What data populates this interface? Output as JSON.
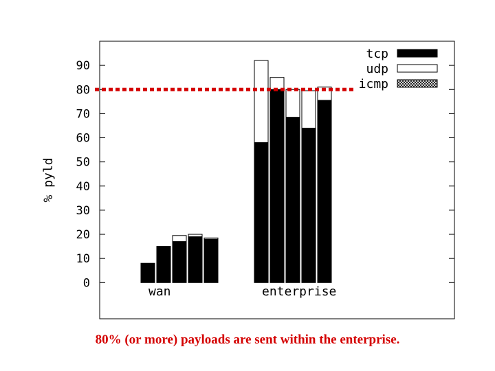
{
  "chart_data": {
    "type": "bar",
    "stacked": true,
    "ylabel": "% pyld",
    "ylim": [
      -15,
      100
    ],
    "yticks": [
      0,
      10,
      20,
      30,
      40,
      50,
      60,
      70,
      80,
      90
    ],
    "groups": [
      {
        "label": "wan",
        "bars": [
          {
            "tcp": 8,
            "udp": 0,
            "icmp": 0
          },
          {
            "tcp": 15,
            "udp": 0,
            "icmp": 0
          },
          {
            "tcp": 17,
            "udp": 2.5,
            "icmp": 0
          },
          {
            "tcp": 19,
            "udp": 1,
            "icmp": 0
          },
          {
            "tcp": 18,
            "udp": 0.5,
            "icmp": 0
          }
        ]
      },
      {
        "label": "enterprise",
        "bars": [
          {
            "tcp": 58,
            "udp": 34,
            "icmp": 0
          },
          {
            "tcp": 80,
            "udp": 5,
            "icmp": 0
          },
          {
            "tcp": 68.5,
            "udp": 11.5,
            "icmp": 0
          },
          {
            "tcp": 64,
            "udp": 15.5,
            "icmp": 0
          },
          {
            "tcp": 75.5,
            "udp": 5.5,
            "icmp": 0
          }
        ]
      }
    ],
    "series": [
      {
        "name": "tcp",
        "color": "#000000",
        "fill": "solid"
      },
      {
        "name": "udp",
        "color": "#ffffff",
        "fill": "empty"
      },
      {
        "name": "icmp",
        "color": "#bbbbbb",
        "fill": "crosshatch"
      }
    ],
    "legend": "top-right",
    "reference_line": {
      "y": 80,
      "color": "#d40000",
      "style": "dotted"
    },
    "grid": false
  },
  "caption": "80% (or more) payloads are sent within the enterprise."
}
